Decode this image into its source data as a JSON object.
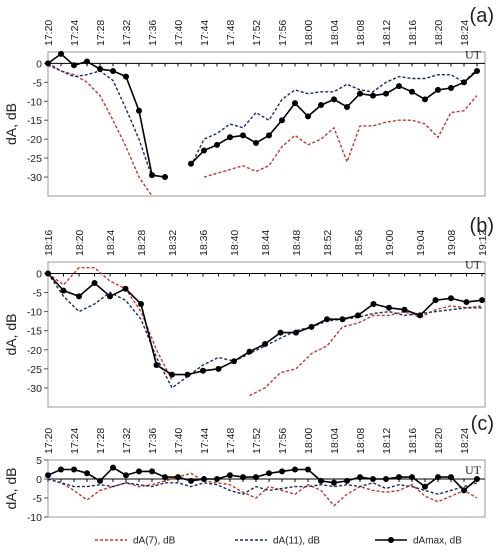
{
  "chart_data": [
    {
      "type": "line",
      "panel_label": "(a)",
      "ylabel": "dA, dB",
      "annotation": "UT",
      "categories": [
        "17:20",
        null,
        "17:24",
        null,
        "17:28",
        null,
        "17:32",
        null,
        "17:36",
        null,
        "17:40",
        null,
        "17:44",
        null,
        "17:48",
        null,
        "17:52",
        null,
        "17:56",
        null,
        "18:00",
        null,
        "18:04",
        null,
        "18:08",
        null,
        "18:12",
        null,
        "18:16",
        null,
        "18:20",
        null,
        "18:24",
        null
      ],
      "ylim": [
        -35,
        3
      ],
      "yticks": [
        0,
        -5,
        -10,
        -15,
        -20,
        -25,
        -30
      ],
      "series": [
        {
          "color": "#c0392b",
          "style": "dashed",
          "values": [
            -0.5,
            -2,
            -3,
            -5,
            -8.5,
            -15,
            -22,
            -30,
            -35,
            null,
            null,
            null,
            -30,
            -29,
            -28,
            -27,
            -28.5,
            -27,
            -22,
            -19,
            -21.5,
            -20,
            -17,
            -26,
            -16.5,
            -16.5,
            -15.5,
            -15,
            -15,
            -16,
            -19.5,
            -13,
            -12.5,
            -8.5
          ]
        },
        {
          "color": "#1a2a6c",
          "style": "dashed",
          "values": [
            0,
            -2,
            -3.5,
            -3,
            -2,
            -4.5,
            -12,
            -20,
            -30,
            null,
            null,
            -27,
            -20,
            -18.5,
            -16,
            -17,
            -13,
            -15,
            -9.5,
            -7,
            -8,
            -7.5,
            -7.5,
            -5.5,
            -7,
            -7.5,
            -5,
            -3.5,
            -4,
            -4,
            -3,
            -3,
            -5,
            -1.5
          ]
        },
        {
          "color": "#000000",
          "style": "solid",
          "marker": "circle",
          "values": [
            0,
            2.5,
            -0.5,
            0.5,
            -1.5,
            -2,
            -3.5,
            -12.5,
            -29.5,
            -30,
            null,
            -26.5,
            -23,
            -21.5,
            -19.5,
            -19,
            -21,
            -19,
            -15,
            -10.5,
            -14,
            -11,
            -9.5,
            -11.5,
            -8,
            -8.5,
            -8,
            -6,
            -7.5,
            -9.5,
            -7,
            -6.5,
            -5,
            -2
          ]
        }
      ]
    },
    {
      "type": "line",
      "panel_label": "(b)",
      "ylabel": "dA, dB",
      "annotation": "UT",
      "categories": [
        "18:16",
        null,
        "18:20",
        null,
        "18:24",
        null,
        "18:28",
        null,
        "18:32",
        null,
        "18:36",
        null,
        "18:40",
        null,
        "18:44",
        null,
        "18:48",
        null,
        "18:52",
        null,
        "18:56",
        null,
        "19:00",
        null,
        "19:04",
        null,
        "19:08",
        null,
        "19:12"
      ],
      "ylim": [
        -35,
        3
      ],
      "yticks": [
        0,
        -5,
        -10,
        -15,
        -20,
        -25,
        -30
      ],
      "series": [
        {
          "color": "#c0392b",
          "style": "dashed",
          "values": [
            0,
            -3,
            1.5,
            1.5,
            -2,
            -4,
            -10,
            -20,
            -28,
            null,
            null,
            null,
            null,
            -32,
            -30,
            -26,
            -25,
            -21,
            -19,
            -14,
            -13,
            -11,
            -11,
            -10,
            -11.5,
            -9.5,
            -8.5,
            -9,
            -8.5
          ]
        },
        {
          "color": "#1a2a6c",
          "style": "dashed",
          "values": [
            0,
            -6,
            -10,
            -8,
            -5,
            -7,
            -12,
            -22,
            -30,
            -27,
            -24,
            -22,
            -23,
            -21,
            -19,
            -17,
            -15,
            -14,
            -12.5,
            -12,
            -11.5,
            -10.5,
            -10,
            -11,
            -10.5,
            -10,
            -9.5,
            -9,
            -9
          ]
        },
        {
          "color": "#000000",
          "style": "solid",
          "marker": "circle",
          "values": [
            0,
            -4.5,
            -6,
            -2.5,
            -6,
            -4,
            -8,
            -24,
            -26.5,
            -26.5,
            -25.5,
            -25,
            -23,
            -20.5,
            -18.5,
            -15.5,
            -15.5,
            -14,
            -12,
            -12,
            -11,
            -8,
            -9,
            -9.5,
            -11,
            -7,
            -6.5,
            -7.5,
            -7
          ]
        }
      ]
    },
    {
      "type": "line",
      "panel_label": "(c)",
      "ylabel": "dA, dB",
      "annotation": "UT",
      "legend": "bottom",
      "categories": [
        "17:20",
        null,
        "17:24",
        null,
        "17:28",
        null,
        "17:32",
        null,
        "17:36",
        null,
        "17:40",
        null,
        "17:44",
        null,
        "17:48",
        null,
        "17:52",
        null,
        "17:56",
        null,
        "18:00",
        null,
        "18:04",
        null,
        "18:08",
        null,
        "18:12",
        null,
        "18:16",
        null,
        "18:20",
        null,
        "18:24",
        null
      ],
      "ylim": [
        -10,
        5
      ],
      "yticks": [
        5,
        0,
        -5,
        -10
      ],
      "series": [
        {
          "name": "dA(7), dB",
          "color": "#c0392b",
          "style": "dashed",
          "values": [
            0,
            -1,
            -3,
            -5.5,
            -3,
            -2,
            -1,
            -2,
            -1.5,
            -0.5,
            0.5,
            1.5,
            -0.5,
            -1,
            -1.5,
            -3.5,
            -5,
            -2,
            -3,
            -4,
            -1.5,
            -3,
            -7,
            -4,
            -2,
            -3,
            -3.5,
            -3,
            -1.5,
            -4.5,
            -6,
            -4.5,
            -3,
            -5
          ]
        },
        {
          "name": "dA(11), dB",
          "color": "#1a2a6c",
          "style": "dashed",
          "values": [
            0,
            -1,
            -2,
            -2,
            -1.5,
            -2,
            -1,
            -1.5,
            -2,
            -1,
            -1,
            -2,
            -1,
            -1.5,
            -3,
            -4,
            -2,
            -3,
            -2.5,
            -2,
            -2,
            -1.5,
            -2,
            -1.5,
            -2,
            -1,
            -2.5,
            -1.5,
            -2,
            -3,
            -4,
            -3,
            -2,
            -1
          ]
        },
        {
          "name": "dAmax, dB",
          "color": "#000000",
          "style": "solid",
          "marker": "circle",
          "values": [
            1,
            2.5,
            2.5,
            1.5,
            -0.5,
            3,
            1,
            2,
            2,
            0.5,
            0.5,
            -0.5,
            0,
            0,
            1,
            0.5,
            0.5,
            1.5,
            2,
            2.5,
            2.5,
            -0.5,
            -1,
            -0.5,
            0.5,
            0,
            0,
            0.5,
            0.5,
            -2,
            0.5,
            0.5,
            -3,
            0
          ]
        }
      ]
    }
  ]
}
